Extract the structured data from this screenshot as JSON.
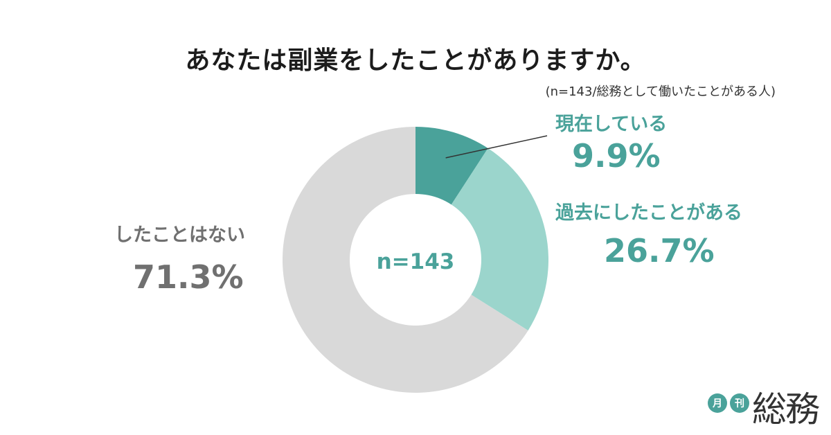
{
  "title": "あなたは副業をしたことがありますか。",
  "note": "(n=143/総務として働いたことがある人)",
  "chart_data": {
    "type": "pie",
    "variant": "donut",
    "center_label": "n=143",
    "slices": [
      {
        "label": "現在している",
        "value": 9.9,
        "display": "9.9%",
        "color": "#4aa29a"
      },
      {
        "label": "過去にしたことがある",
        "value": 26.7,
        "display": "26.7%",
        "color": "#9bd5cc"
      },
      {
        "label": "したことはない",
        "value": 71.3,
        "display": "71.3%",
        "color": "#d9d9d9"
      }
    ],
    "label_colors": [
      "#4aa29a",
      "#4aa29a",
      "#707070"
    ],
    "center_color": "#4aa29a"
  },
  "logo": {
    "badge1": "月",
    "badge2": "刊",
    "word": "総務"
  }
}
